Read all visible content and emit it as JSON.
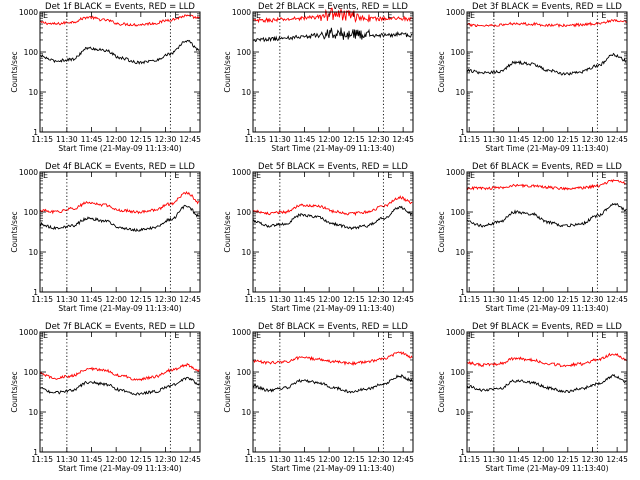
{
  "chart_data": [
    {
      "type": "line",
      "title": "Det 1f BLACK = Events, RED = LLD",
      "xlabel": "Start Time (21-May-09 11:13:40)",
      "ylabel": "Counts/sec",
      "yscale": "log",
      "ylim": [
        1,
        1000
      ],
      "xlim": [
        "11:13:40",
        "12:51:00"
      ],
      "x_ticks": [
        "11:15",
        "11:30",
        "11:45",
        "12:00",
        "12:15",
        "12:30",
        "12:45"
      ],
      "y_ticks": [
        "1",
        "10",
        "100",
        "1000"
      ],
      "flags": [
        {
          "label": "E",
          "time": "11:13:40"
        },
        {
          "label": "E",
          "time": "12:33:00"
        }
      ],
      "vlines": [
        "11:30:00",
        "12:33:00"
      ],
      "series": [
        {
          "color": "#ff0000",
          "x": [
            "11:13",
            "11:23",
            "11:33",
            "11:43",
            "11:53",
            "12:03",
            "12:13",
            "12:23",
            "12:33",
            "12:43",
            "12:51"
          ],
          "values": [
            550,
            500,
            560,
            740,
            630,
            500,
            480,
            520,
            640,
            800,
            700
          ]
        },
        {
          "color": "#000000",
          "x": [
            "11:13",
            "11:23",
            "11:33",
            "11:43",
            "11:53",
            "12:03",
            "12:13",
            "12:23",
            "12:33",
            "12:43",
            "12:51"
          ],
          "values": [
            80,
            60,
            65,
            125,
            110,
            70,
            55,
            60,
            90,
            190,
            110
          ]
        }
      ]
    },
    {
      "type": "line",
      "title": "Det 2f BLACK = Events, RED = LLD",
      "xlabel": "Start Time (21-May-09 11:13:40)",
      "ylabel": "Counts/sec",
      "yscale": "log",
      "ylim": [
        1,
        1000
      ],
      "xlim": [
        "11:13:40",
        "12:51:00"
      ],
      "x_ticks": [
        "11:15",
        "11:30",
        "11:45",
        "12:00",
        "12:15",
        "12:30",
        "12:45"
      ],
      "y_ticks": [
        "1",
        "10",
        "100",
        "1000"
      ],
      "flags": [
        {
          "label": "E",
          "time": "11:13:40"
        },
        {
          "label": "E",
          "time": "12:33:00"
        }
      ],
      "vlines": [
        "11:30:00",
        "12:33:00"
      ],
      "series": [
        {
          "color": "#ff0000",
          "x": [
            "11:13",
            "11:23",
            "11:33",
            "11:43",
            "11:53",
            "12:03",
            "12:13",
            "12:23",
            "12:33",
            "12:43",
            "12:51"
          ],
          "values": [
            600,
            620,
            650,
            700,
            750,
            900,
            800,
            700,
            680,
            700,
            650
          ]
        },
        {
          "color": "#000000",
          "x": [
            "11:13",
            "11:23",
            "11:33",
            "11:43",
            "11:53",
            "12:03",
            "12:13",
            "12:23",
            "12:33",
            "12:43",
            "12:51"
          ],
          "values": [
            200,
            210,
            220,
            240,
            260,
            300,
            270,
            250,
            260,
            280,
            250
          ]
        }
      ]
    },
    {
      "type": "line",
      "title": "Det 3f BLACK = Events, RED = LLD",
      "xlabel": "Start Time (21-May-09 11:13:40)",
      "ylabel": "Counts/sec",
      "yscale": "log",
      "ylim": [
        1,
        1000
      ],
      "xlim": [
        "11:13:40",
        "12:51:00"
      ],
      "x_ticks": [
        "11:15",
        "11:30",
        "11:45",
        "12:00",
        "12:15",
        "12:30",
        "12:45"
      ],
      "y_ticks": [
        "1",
        "10",
        "100",
        "1000"
      ],
      "flags": [
        {
          "label": "E",
          "time": "11:13:40"
        },
        {
          "label": "E",
          "time": "12:33:00"
        }
      ],
      "vlines": [
        "11:30:00",
        "12:33:00"
      ],
      "series": [
        {
          "color": "#ff0000",
          "x": [
            "11:13",
            "11:23",
            "11:33",
            "11:43",
            "11:53",
            "12:03",
            "12:13",
            "12:23",
            "12:33",
            "12:43",
            "12:51"
          ],
          "values": [
            480,
            460,
            470,
            520,
            500,
            470,
            460,
            480,
            520,
            600,
            560
          ]
        },
        {
          "color": "#000000",
          "x": [
            "11:13",
            "11:23",
            "11:33",
            "11:43",
            "11:53",
            "12:03",
            "12:13",
            "12:23",
            "12:33",
            "12:43",
            "12:51"
          ],
          "values": [
            35,
            30,
            32,
            55,
            50,
            35,
            28,
            32,
            45,
            85,
            60
          ]
        }
      ]
    },
    {
      "type": "line",
      "title": "Det 4f BLACK = Events, RED = LLD",
      "xlabel": "Start Time (21-May-09 11:13:40)",
      "ylabel": "Counts/sec",
      "yscale": "log",
      "ylim": [
        1,
        1000
      ],
      "xlim": [
        "11:13:40",
        "12:51:00"
      ],
      "x_ticks": [
        "11:15",
        "11:30",
        "11:45",
        "12:00",
        "12:15",
        "12:30",
        "12:45"
      ],
      "y_ticks": [
        "1",
        "10",
        "100",
        "1000"
      ],
      "flags": [
        {
          "label": "E",
          "time": "11:13:40"
        },
        {
          "label": "E",
          "time": "12:33:00"
        }
      ],
      "vlines": [
        "11:30:00",
        "12:33:00"
      ],
      "series": [
        {
          "color": "#ff0000",
          "x": [
            "11:13",
            "11:23",
            "11:33",
            "11:43",
            "11:53",
            "12:03",
            "12:13",
            "12:23",
            "12:33",
            "12:43",
            "12:51"
          ],
          "values": [
            110,
            100,
            120,
            170,
            150,
            110,
            100,
            110,
            160,
            300,
            170
          ]
        },
        {
          "color": "#000000",
          "x": [
            "11:13",
            "11:23",
            "11:33",
            "11:43",
            "11:53",
            "12:03",
            "12:13",
            "12:23",
            "12:33",
            "12:43",
            "12:51"
          ],
          "values": [
            50,
            40,
            45,
            70,
            60,
            40,
            35,
            40,
            65,
            140,
            75
          ]
        }
      ]
    },
    {
      "type": "line",
      "title": "Det 5f BLACK = Events, RED = LLD",
      "xlabel": "Start Time (21-May-09 11:13:40)",
      "ylabel": "Counts/sec",
      "yscale": "log",
      "ylim": [
        1,
        1000
      ],
      "xlim": [
        "11:13:40",
        "12:51:00"
      ],
      "x_ticks": [
        "11:15",
        "11:30",
        "11:45",
        "12:00",
        "12:15",
        "12:30",
        "12:45"
      ],
      "y_ticks": [
        "1",
        "10",
        "100",
        "1000"
      ],
      "flags": [
        {
          "label": "E",
          "time": "11:13:40"
        },
        {
          "label": "E",
          "time": "12:33:00"
        }
      ],
      "vlines": [
        "11:30:00",
        "12:33:00"
      ],
      "series": [
        {
          "color": "#ff0000",
          "x": [
            "11:13",
            "11:23",
            "11:33",
            "11:43",
            "11:53",
            "12:03",
            "12:13",
            "12:23",
            "12:33",
            "12:43",
            "12:51"
          ],
          "values": [
            110,
            90,
            100,
            150,
            140,
            105,
            90,
            100,
            140,
            230,
            170
          ]
        },
        {
          "color": "#000000",
          "x": [
            "11:13",
            "11:23",
            "11:33",
            "11:43",
            "11:53",
            "12:03",
            "12:13",
            "12:23",
            "12:33",
            "12:43",
            "12:51"
          ],
          "values": [
            60,
            45,
            50,
            85,
            75,
            50,
            40,
            45,
            70,
            130,
            90
          ]
        }
      ]
    },
    {
      "type": "line",
      "title": "Det 6f BLACK = Events, RED = LLD",
      "xlabel": "Start Time (21-May-09 11:13:40)",
      "ylabel": "Counts/sec",
      "yscale": "log",
      "ylim": [
        1,
        1000
      ],
      "xlim": [
        "11:13:40",
        "12:51:00"
      ],
      "x_ticks": [
        "11:15",
        "11:30",
        "11:45",
        "12:00",
        "12:15",
        "12:30",
        "12:45"
      ],
      "y_ticks": [
        "1",
        "10",
        "100",
        "1000"
      ],
      "flags": [
        {
          "label": "E",
          "time": "11:13:40"
        },
        {
          "label": "E",
          "time": "12:33:00"
        }
      ],
      "vlines": [
        "11:30:00",
        "12:33:00"
      ],
      "series": [
        {
          "color": "#ff0000",
          "x": [
            "11:13",
            "11:23",
            "11:33",
            "11:43",
            "11:53",
            "12:03",
            "12:13",
            "12:23",
            "12:33",
            "12:43",
            "12:51"
          ],
          "values": [
            400,
            390,
            400,
            460,
            450,
            410,
            390,
            400,
            450,
            620,
            520
          ]
        },
        {
          "color": "#000000",
          "x": [
            "11:13",
            "11:23",
            "11:33",
            "11:43",
            "11:53",
            "12:03",
            "12:13",
            "12:23",
            "12:33",
            "12:43",
            "12:51"
          ],
          "values": [
            60,
            45,
            55,
            100,
            90,
            55,
            45,
            50,
            80,
            160,
            110
          ]
        }
      ]
    },
    {
      "type": "line",
      "title": "Det 7f BLACK = Events, RED = LLD",
      "xlabel": "Start Time (21-May-09 11:13:40)",
      "ylabel": "Counts/sec",
      "yscale": "log",
      "ylim": [
        1,
        1000
      ],
      "xlim": [
        "11:13:40",
        "12:51:00"
      ],
      "x_ticks": [
        "11:15",
        "11:30",
        "11:45",
        "12:00",
        "12:15",
        "12:30",
        "12:45"
      ],
      "y_ticks": [
        "1",
        "10",
        "100",
        "1000"
      ],
      "flags": [
        {
          "label": "E",
          "time": "11:13:40"
        },
        {
          "label": "E",
          "time": "12:33:00"
        }
      ],
      "vlines": [
        "11:30:00",
        "12:33:00"
      ],
      "series": [
        {
          "color": "#ff0000",
          "x": [
            "11:13",
            "11:23",
            "11:33",
            "11:43",
            "11:53",
            "12:03",
            "12:13",
            "12:23",
            "12:33",
            "12:43",
            "12:51"
          ],
          "values": [
            90,
            70,
            80,
            120,
            110,
            80,
            65,
            75,
            110,
            150,
            110
          ]
        },
        {
          "color": "#000000",
          "x": [
            "11:13",
            "11:23",
            "11:33",
            "11:43",
            "11:53",
            "12:03",
            "12:13",
            "12:23",
            "12:33",
            "12:43",
            "12:51"
          ],
          "values": [
            40,
            30,
            35,
            55,
            50,
            35,
            28,
            32,
            45,
            70,
            50
          ]
        }
      ]
    },
    {
      "type": "line",
      "title": "Det 8f BLACK = Events, RED = LLD",
      "xlabel": "Start Time (21-May-09 11:13:40)",
      "ylabel": "Counts/sec",
      "yscale": "log",
      "ylim": [
        1,
        1000
      ],
      "xlim": [
        "11:13:40",
        "12:51:00"
      ],
      "x_ticks": [
        "11:15",
        "11:30",
        "11:45",
        "12:00",
        "12:15",
        "12:30",
        "12:45"
      ],
      "y_ticks": [
        "1",
        "10",
        "100",
        "1000"
      ],
      "flags": [
        {
          "label": "E",
          "time": "11:13:40"
        },
        {
          "label": "E",
          "time": "12:33:00"
        }
      ],
      "vlines": [
        "11:30:00",
        "12:33:00"
      ],
      "series": [
        {
          "color": "#ff0000",
          "x": [
            "11:13",
            "11:23",
            "11:33",
            "11:43",
            "11:53",
            "12:03",
            "12:13",
            "12:23",
            "12:33",
            "12:43",
            "12:51"
          ],
          "values": [
            190,
            170,
            180,
            230,
            210,
            180,
            165,
            180,
            220,
            300,
            230
          ]
        },
        {
          "color": "#000000",
          "x": [
            "11:13",
            "11:23",
            "11:33",
            "11:43",
            "11:53",
            "12:03",
            "12:13",
            "12:23",
            "12:33",
            "12:43",
            "12:51"
          ],
          "values": [
            45,
            35,
            40,
            60,
            55,
            40,
            32,
            38,
            50,
            80,
            60
          ]
        }
      ]
    },
    {
      "type": "line",
      "title": "Det 9f BLACK = Events, RED = LLD",
      "xlabel": "Start Time (21-May-09 11:13:40)",
      "ylabel": "Counts/sec",
      "yscale": "log",
      "ylim": [
        1,
        1000
      ],
      "xlim": [
        "11:13:40",
        "12:51:00"
      ],
      "x_ticks": [
        "11:15",
        "11:30",
        "11:45",
        "12:00",
        "12:15",
        "12:30",
        "12:45"
      ],
      "y_ticks": [
        "1",
        "10",
        "100",
        "1000"
      ],
      "flags": [
        {
          "label": "E",
          "time": "11:13:40"
        },
        {
          "label": "E",
          "time": "12:33:00"
        }
      ],
      "vlines": [
        "11:30:00",
        "12:33:00"
      ],
      "series": [
        {
          "color": "#ff0000",
          "x": [
            "11:13",
            "11:23",
            "11:33",
            "11:43",
            "11:53",
            "12:03",
            "12:13",
            "12:23",
            "12:33",
            "12:43",
            "12:51"
          ],
          "values": [
            170,
            150,
            160,
            220,
            200,
            160,
            145,
            160,
            200,
            290,
            200
          ]
        },
        {
          "color": "#000000",
          "x": [
            "11:13",
            "11:23",
            "11:33",
            "11:43",
            "11:53",
            "12:03",
            "12:13",
            "12:23",
            "12:33",
            "12:43",
            "12:51"
          ],
          "values": [
            45,
            35,
            38,
            60,
            55,
            40,
            32,
            38,
            50,
            80,
            55
          ]
        }
      ]
    }
  ]
}
